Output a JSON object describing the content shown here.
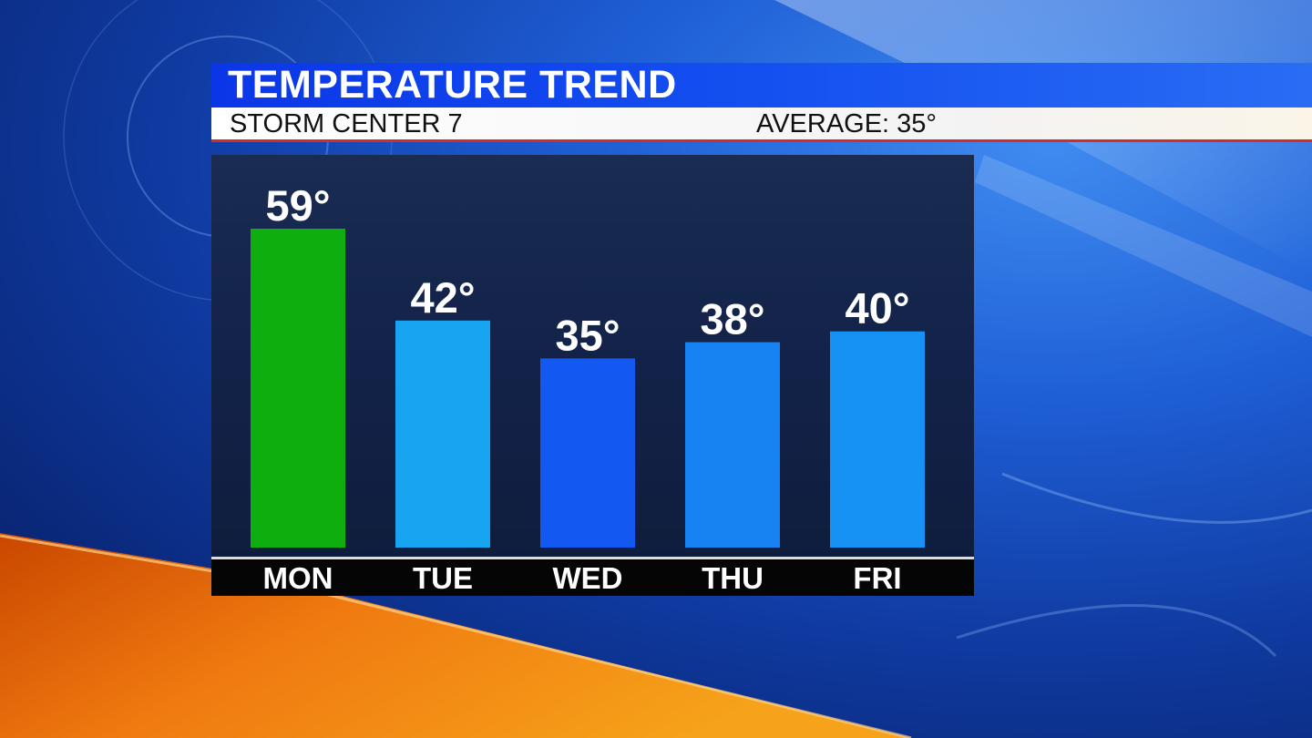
{
  "header": {
    "title": "TEMPERATURE TREND",
    "station": "STORM CENTER 7",
    "average": "AVERAGE: 35°"
  },
  "chart_data": {
    "type": "bar",
    "title": "TEMPERATURE TREND",
    "xlabel": "",
    "ylabel": "",
    "categories": [
      "MON",
      "TUE",
      "WED",
      "THU",
      "FRI"
    ],
    "values": [
      59,
      42,
      35,
      38,
      40
    ],
    "value_labels": [
      "59°",
      "42°",
      "35°",
      "38°",
      "40°"
    ],
    "bar_colors": [
      "#0fae0f",
      "#17a5f2",
      "#1458f2",
      "#1782f2",
      "#1592f4"
    ],
    "unit": "°",
    "ylim": [
      0,
      59
    ],
    "grid": false,
    "legend": "none"
  },
  "colors": {
    "title_bar": "#0b36e8",
    "accent_red": "#d62b2b",
    "panel": "#13234a"
  }
}
